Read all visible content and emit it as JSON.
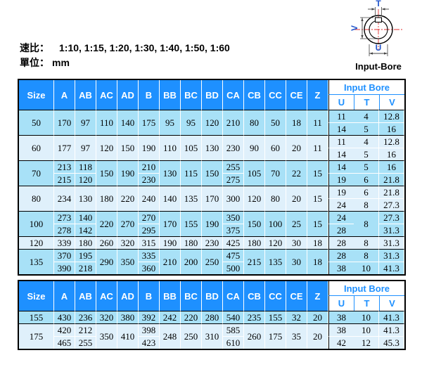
{
  "meta": {
    "ratio_label": "速比：",
    "ratio_values": "1:10, 1:15, 1:20, 1:30, 1:40, 1:50, 1:60",
    "unit_label": "單位：",
    "unit_value": "mm",
    "diagram_caption": "Input-Bore",
    "diagram_labels": {
      "t": "T",
      "v": "V",
      "u": "U"
    }
  },
  "colors": {
    "header_blue": "#1E90FF",
    "row_medium": "#A8E1F7",
    "row_light": "#DFF0FB",
    "diagram_label_blue": "#2255CC",
    "centerline_red": "#E03030"
  },
  "table": {
    "columns": [
      "Size",
      "A",
      "AB",
      "AC",
      "AD",
      "B",
      "BB",
      "BC",
      "BD",
      "CA",
      "CB",
      "CC",
      "CE",
      "Z"
    ],
    "bore_header": "Input Bore",
    "bore_columns": [
      "U",
      "T",
      "V"
    ]
  },
  "tables": [
    {
      "rows": [
        {
          "size": "50",
          "values": {
            "A": [
              "170"
            ],
            "AB": [
              "97"
            ],
            "AC": [
              "110"
            ],
            "AD": [
              "140"
            ],
            "B": [
              "175"
            ],
            "BB": [
              "95"
            ],
            "BC": [
              "95"
            ],
            "BD": [
              "120"
            ],
            "CA": [
              "210"
            ],
            "CB": [
              "80"
            ],
            "CC": [
              "50"
            ],
            "CE": [
              "18"
            ],
            "Z": [
              "11"
            ],
            "U": [
              "11",
              "14"
            ],
            "T": [
              "4",
              "5"
            ],
            "V": [
              "12.8",
              "16"
            ]
          }
        },
        {
          "size": "60",
          "values": {
            "A": [
              "177"
            ],
            "AB": [
              "97"
            ],
            "AC": [
              "120"
            ],
            "AD": [
              "150"
            ],
            "B": [
              "190"
            ],
            "BB": [
              "110"
            ],
            "BC": [
              "105"
            ],
            "BD": [
              "130"
            ],
            "CA": [
              "230"
            ],
            "CB": [
              "90"
            ],
            "CC": [
              "60"
            ],
            "CE": [
              "20"
            ],
            "Z": [
              "11"
            ],
            "U": [
              "11",
              "14"
            ],
            "T": [
              "4",
              "5"
            ],
            "V": [
              "12.8",
              "16"
            ]
          }
        },
        {
          "size": "70",
          "values": {
            "A": [
              "213",
              "215"
            ],
            "AB": [
              "118",
              "120"
            ],
            "AC": [
              "150"
            ],
            "AD": [
              "190"
            ],
            "B": [
              "210",
              "230"
            ],
            "BB": [
              "130"
            ],
            "BC": [
              "115"
            ],
            "BD": [
              "150"
            ],
            "CA": [
              "255",
              "275"
            ],
            "CB": [
              "105"
            ],
            "CC": [
              "70"
            ],
            "CE": [
              "22"
            ],
            "Z": [
              "15"
            ],
            "U": [
              "14",
              "19"
            ],
            "T": [
              "5",
              "6"
            ],
            "V": [
              "16",
              "21.8"
            ]
          }
        },
        {
          "size": "80",
          "values": {
            "A": [
              "234"
            ],
            "AB": [
              "130"
            ],
            "AC": [
              "180"
            ],
            "AD": [
              "220"
            ],
            "B": [
              "240"
            ],
            "BB": [
              "140"
            ],
            "BC": [
              "135"
            ],
            "BD": [
              "170"
            ],
            "CA": [
              "300"
            ],
            "CB": [
              "120"
            ],
            "CC": [
              "80"
            ],
            "CE": [
              "20"
            ],
            "Z": [
              "15"
            ],
            "U": [
              "19",
              "24"
            ],
            "T": [
              "6",
              "8"
            ],
            "V": [
              "21.8",
              "27.3"
            ]
          }
        },
        {
          "size": "100",
          "values": {
            "A": [
              "273",
              "278"
            ],
            "AB": [
              "140",
              "142"
            ],
            "AC": [
              "220"
            ],
            "AD": [
              "270"
            ],
            "B": [
              "270",
              "295"
            ],
            "BB": [
              "170"
            ],
            "BC": [
              "155"
            ],
            "BD": [
              "190"
            ],
            "CA": [
              "350",
              "375"
            ],
            "CB": [
              "150"
            ],
            "CC": [
              "100"
            ],
            "CE": [
              "25"
            ],
            "Z": [
              "15"
            ],
            "U": [
              "24",
              "28"
            ],
            "T": [
              "8"
            ],
            "V": [
              "27.3",
              "31.3"
            ]
          }
        },
        {
          "size": "120",
          "values": {
            "A": [
              "339"
            ],
            "AB": [
              "180"
            ],
            "AC": [
              "260"
            ],
            "AD": [
              "320"
            ],
            "B": [
              "315"
            ],
            "BB": [
              "190"
            ],
            "BC": [
              "180"
            ],
            "BD": [
              "230"
            ],
            "CA": [
              "425"
            ],
            "CB": [
              "180"
            ],
            "CC": [
              "120"
            ],
            "CE": [
              "30"
            ],
            "Z": [
              "18"
            ],
            "U": [
              "28"
            ],
            "T": [
              "8"
            ],
            "V": [
              "31.3"
            ]
          }
        },
        {
          "size": "135",
          "values": {
            "A": [
              "370",
              "390"
            ],
            "AB": [
              "195",
              "218"
            ],
            "AC": [
              "290"
            ],
            "AD": [
              "350"
            ],
            "B": [
              "335",
              "360"
            ],
            "BB": [
              "210"
            ],
            "BC": [
              "200"
            ],
            "BD": [
              "250"
            ],
            "CA": [
              "475",
              "500"
            ],
            "CB": [
              "215"
            ],
            "CC": [
              "135"
            ],
            "CE": [
              "30"
            ],
            "Z": [
              "18"
            ],
            "U": [
              "28",
              "38"
            ],
            "T": [
              "8",
              "10"
            ],
            "V": [
              "31.3",
              "41.3"
            ]
          }
        }
      ]
    },
    {
      "rows": [
        {
          "size": "155",
          "values": {
            "A": [
              "430"
            ],
            "AB": [
              "236"
            ],
            "AC": [
              "320"
            ],
            "AD": [
              "380"
            ],
            "B": [
              "392"
            ],
            "BB": [
              "242"
            ],
            "BC": [
              "220"
            ],
            "BD": [
              "280"
            ],
            "CA": [
              "540"
            ],
            "CB": [
              "235"
            ],
            "CC": [
              "155"
            ],
            "CE": [
              "32"
            ],
            "Z": [
              "20"
            ],
            "U": [
              "38"
            ],
            "T": [
              "10"
            ],
            "V": [
              "41.3"
            ]
          }
        },
        {
          "size": "175",
          "values": {
            "A": [
              "420",
              "465"
            ],
            "AB": [
              "212",
              "255"
            ],
            "AC": [
              "350"
            ],
            "AD": [
              "410"
            ],
            "B": [
              "398",
              "423"
            ],
            "BB": [
              "248"
            ],
            "BC": [
              "250"
            ],
            "BD": [
              "310"
            ],
            "CA": [
              "585",
              "610"
            ],
            "CB": [
              "260"
            ],
            "CC": [
              "175"
            ],
            "CE": [
              "35"
            ],
            "Z": [
              "20"
            ],
            "U": [
              "38",
              "42"
            ],
            "T": [
              "10",
              "12"
            ],
            "V": [
              "41.3",
              "45.3"
            ]
          }
        }
      ]
    }
  ]
}
